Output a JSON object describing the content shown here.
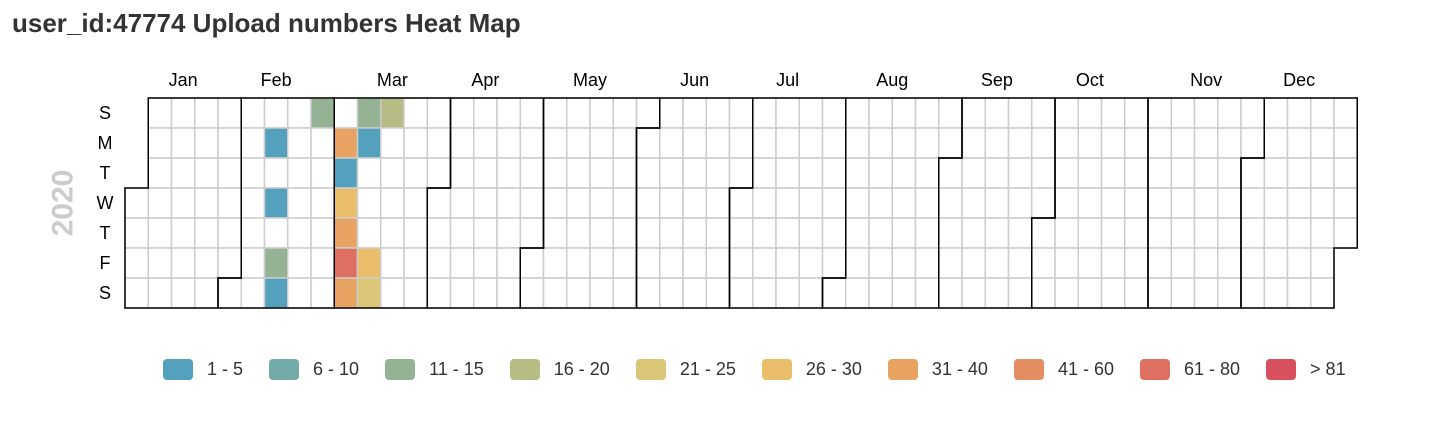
{
  "title": "user_id:47774 Upload numbers Heat Map",
  "chart_data": {
    "type": "heatmap",
    "title": "user_id:47774 Upload numbers Heat Map",
    "year": "2020",
    "months": [
      "Jan",
      "Feb",
      "Mar",
      "Apr",
      "May",
      "Jun",
      "Jul",
      "Aug",
      "Sep",
      "Oct",
      "Nov",
      "Dec"
    ],
    "day_labels": [
      "S",
      "M",
      "T",
      "W",
      "T",
      "F",
      "S"
    ],
    "legend": {
      "position": "bottom",
      "bins": [
        {
          "label": "1 - 5",
          "color": "#53a1bd"
        },
        {
          "label": "6 - 10",
          "color": "#72aaa8"
        },
        {
          "label": "11 - 15",
          "color": "#95b394"
        },
        {
          "label": "16 - 20",
          "color": "#b7bc85"
        },
        {
          "label": "21 - 25",
          "color": "#d9c677"
        },
        {
          "label": "26 - 30",
          "color": "#e9bd6a"
        },
        {
          "label": "31 - 40",
          "color": "#e8a363"
        },
        {
          "label": "41 - 60",
          "color": "#e48c62"
        },
        {
          "label": "61 - 80",
          "color": "#df6f60"
        },
        {
          "label": "> 81",
          "color": "#d84f5d"
        }
      ]
    },
    "cells": [
      {
        "date": "2020-02-10",
        "bin": 0
      },
      {
        "date": "2020-02-12",
        "bin": 0
      },
      {
        "date": "2020-02-14",
        "bin": 2
      },
      {
        "date": "2020-02-15",
        "bin": 0
      },
      {
        "date": "2020-02-23",
        "bin": 2
      },
      {
        "date": "2020-03-02",
        "bin": 6
      },
      {
        "date": "2020-03-03",
        "bin": 0
      },
      {
        "date": "2020-03-04",
        "bin": 5
      },
      {
        "date": "2020-03-05",
        "bin": 6
      },
      {
        "date": "2020-03-06",
        "bin": 8
      },
      {
        "date": "2020-03-07",
        "bin": 6
      },
      {
        "date": "2020-03-08",
        "bin": 2
      },
      {
        "date": "2020-03-09",
        "bin": 0
      },
      {
        "date": "2020-03-13",
        "bin": 5
      },
      {
        "date": "2020-03-14",
        "bin": 4
      },
      {
        "date": "2020-03-15",
        "bin": 3
      }
    ]
  }
}
